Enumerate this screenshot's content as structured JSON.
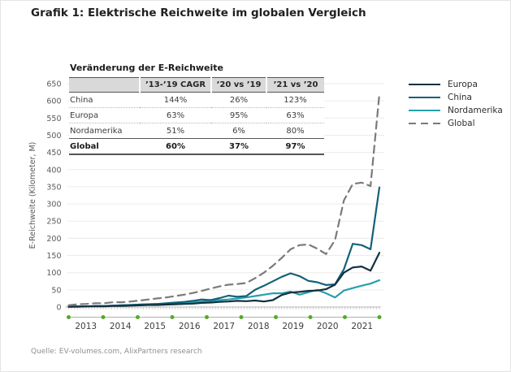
{
  "page": {
    "title": "Grafik 1: Elektrische Reichweite im globalen Vergleich",
    "source": "Quelle: EV-volumes.com, AlixPartners research"
  },
  "inset_table": {
    "title": "Veränderung der E-Reichweite",
    "corner": "",
    "columns": [
      "’13-’19 CAGR",
      "’20 vs ’19",
      "’21 vs ’20"
    ],
    "rows": [
      {
        "label": "China",
        "values": [
          "144%",
          "26%",
          "123%"
        ]
      },
      {
        "label": "Europa",
        "values": [
          "63%",
          "95%",
          "63%"
        ]
      },
      {
        "label": "Nordamerika",
        "values": [
          "51%",
          "6%",
          "80%"
        ]
      },
      {
        "label": "Global",
        "values": [
          "60%",
          "37%",
          "97%"
        ]
      }
    ]
  },
  "chart_data": {
    "type": "line",
    "title": "",
    "xlabel": "",
    "ylabel": "E-Reichweite (Kilometer, M)",
    "ylim": [
      0,
      650
    ],
    "ytick_step": 50,
    "grid": "horizontal",
    "legend_position": "right",
    "x_years": [
      2013,
      2014,
      2015,
      2016,
      2017,
      2018,
      2019,
      2020,
      2021
    ],
    "x_resolution": "quarterly",
    "timeline_dot_color": "#56a829",
    "axis_color": "#c4c2c0",
    "grid_color": "#edebe9",
    "draw_order": [
      2,
      1,
      0,
      3
    ],
    "series": [
      {
        "name": "Europa",
        "color": "#12303f",
        "dash": false,
        "values": [
          1,
          1,
          2,
          2,
          2,
          3,
          3,
          4,
          5,
          6,
          6,
          7,
          8,
          9,
          10,
          12,
          13,
          15,
          16,
          18,
          17,
          19,
          16,
          20,
          35,
          42,
          44,
          47,
          48,
          52,
          65,
          100,
          115,
          118,
          106,
          158
        ]
      },
      {
        "name": "China",
        "color": "#136179",
        "dash": false,
        "values": [
          1,
          2,
          2,
          3,
          3,
          4,
          5,
          6,
          7,
          8,
          9,
          11,
          13,
          15,
          18,
          22,
          20,
          26,
          33,
          30,
          32,
          50,
          62,
          75,
          88,
          98,
          90,
          76,
          72,
          64,
          66,
          110,
          184,
          180,
          168,
          348
        ]
      },
      {
        "name": "Nordamerika",
        "color": "#26a0ac",
        "dash": false,
        "values": [
          1,
          2,
          2,
          3,
          3,
          4,
          5,
          6,
          7,
          8,
          9,
          10,
          11,
          13,
          14,
          16,
          18,
          20,
          22,
          25,
          28,
          32,
          36,
          40,
          40,
          45,
          36,
          43,
          50,
          40,
          28,
          48,
          55,
          62,
          68,
          78
        ]
      },
      {
        "name": "Global",
        "color": "#7a7a7a",
        "dash": true,
        "values": [
          5,
          8,
          9,
          11,
          11,
          14,
          14,
          16,
          19,
          22,
          25,
          28,
          32,
          36,
          41,
          47,
          54,
          60,
          65,
          67,
          70,
          84,
          100,
          120,
          143,
          168,
          180,
          182,
          170,
          154,
          195,
          310,
          358,
          362,
          352,
          620
        ]
      }
    ]
  }
}
